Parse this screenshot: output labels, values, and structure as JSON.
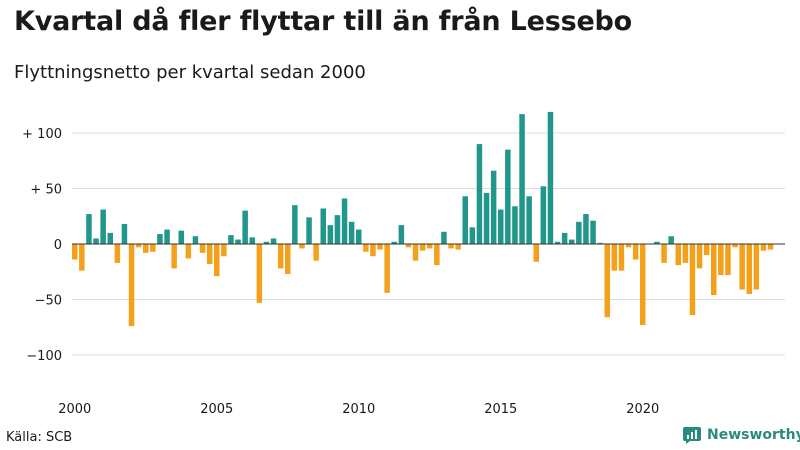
{
  "title": "Kvartal då fler flyttar till än från Lessebo",
  "subtitle": "Flyttningsnetto per kvartal sedan 2000",
  "source": "Källa: SCB",
  "brand": {
    "name": "Newsworthy"
  },
  "colors": {
    "positive": "#21968a",
    "negative": "#f5a01a",
    "grid": "#dddddd",
    "brand": "#2a8a80"
  },
  "chart_data": {
    "type": "bar",
    "title": "Kvartal då fler flyttar till än från Lessebo",
    "subtitle": "Flyttningsnetto per kvartal sedan 2000",
    "ylim": [
      -100,
      125
    ],
    "grid": true,
    "y_ticks": [
      {
        "value": 100,
        "label": "+ 100"
      },
      {
        "value": 50,
        "label": "+  50"
      },
      {
        "value": 0,
        "label": "0"
      },
      {
        "value": -50,
        "label": "−50"
      },
      {
        "value": -100,
        "label": "−100"
      }
    ],
    "x_ticks": [
      "2000",
      "2005",
      "2010",
      "2015",
      "2020"
    ],
    "start_year": 2000,
    "values": [
      -14,
      -24,
      27,
      5,
      31,
      10,
      -17,
      18,
      -74,
      -3,
      -8,
      -7,
      9,
      13,
      -22,
      12,
      -13,
      7,
      -8,
      -18,
      -29,
      -11,
      8,
      4,
      30,
      6,
      -53,
      2,
      5,
      -22,
      -27,
      35,
      -4,
      24,
      -15,
      32,
      17,
      26,
      41,
      20,
      13,
      -7,
      -11,
      -5,
      -44,
      2,
      17,
      -3,
      -15,
      -6,
      -4,
      -19,
      11,
      -4,
      -5,
      43,
      15,
      90,
      46,
      66,
      31,
      85,
      34,
      117,
      43,
      -16,
      52,
      119,
      2,
      10,
      4,
      20,
      27,
      21,
      1,
      -66,
      -24,
      -24,
      -3,
      -14,
      -73,
      0,
      2,
      -17,
      7,
      -19,
      -17,
      -64,
      -22,
      -10,
      -46,
      -28,
      -28,
      -3,
      -41,
      -45,
      -41,
      -6,
      -5
    ]
  }
}
